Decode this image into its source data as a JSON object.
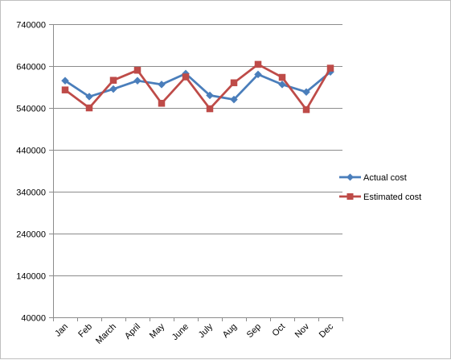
{
  "chart_data": {
    "type": "line",
    "title": "",
    "xlabel": "",
    "ylabel": "",
    "categories": [
      "Jan",
      "Feb",
      "March",
      "April",
      "May",
      "June",
      "July",
      "Aug",
      "Sep",
      "Oct",
      "Nov",
      "Dec"
    ],
    "ylim": [
      40000,
      740000
    ],
    "yticks": [
      40000,
      140000,
      240000,
      340000,
      440000,
      540000,
      640000,
      740000
    ],
    "ytick_labels": [
      "40000",
      "140000",
      "240000",
      "340000",
      "440000",
      "540000",
      "640000",
      "740000"
    ],
    "grid": "horizontal",
    "legend_position": "right",
    "series": [
      {
        "name": "Actual cost",
        "color": "#4a7ebb",
        "marker": "diamond",
        "values": [
          605000,
          567000,
          585000,
          605000,
          596000,
          622000,
          570000,
          560000,
          620000,
          596000,
          578000,
          626000
        ]
      },
      {
        "name": "Estimated cost",
        "color": "#be4b48",
        "marker": "square",
        "values": [
          583000,
          540000,
          606000,
          630000,
          551000,
          614000,
          538000,
          600000,
          644000,
          613000,
          536000,
          635000
        ]
      }
    ]
  }
}
